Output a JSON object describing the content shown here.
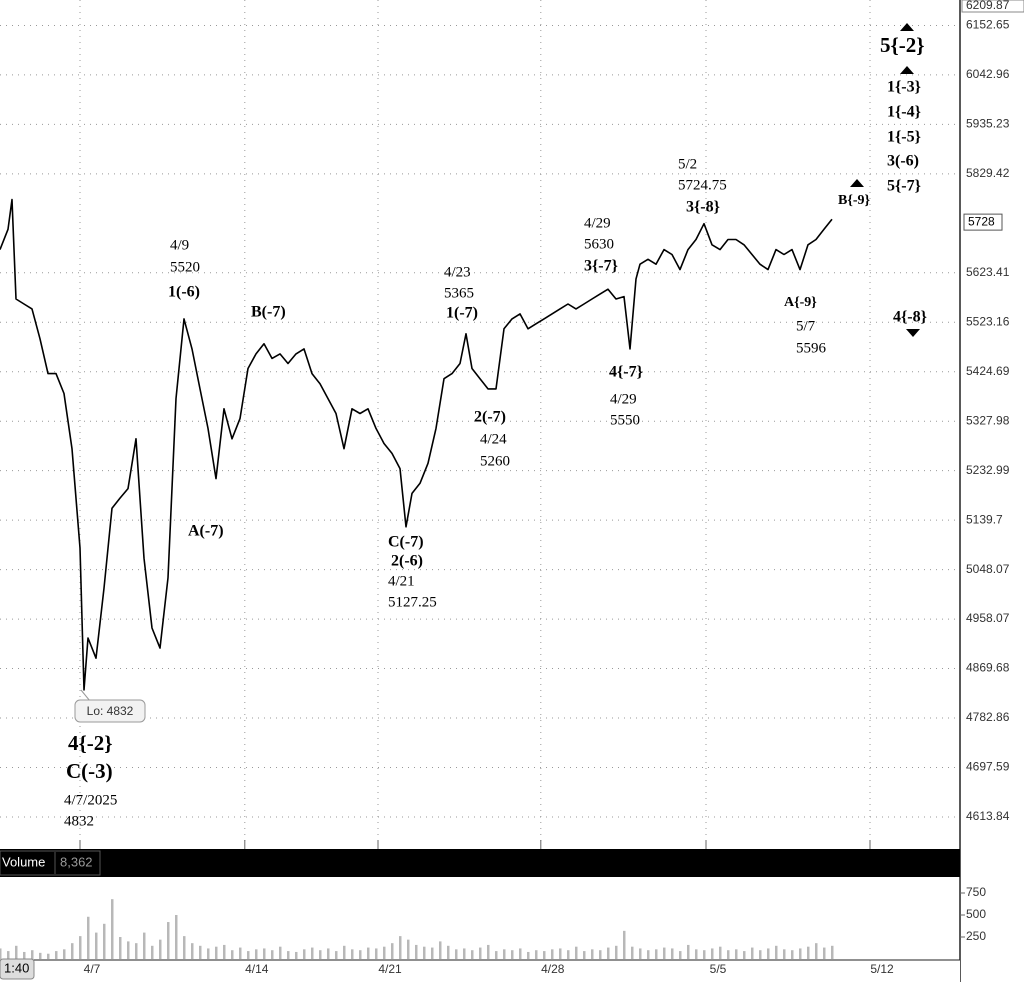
{
  "chart_data": [
    {
      "type": "line",
      "log_scale": true,
      "grid": true,
      "color": "#000000",
      "ylim": [
        4567,
        6209.87
      ],
      "yticks": [
        6152.65,
        6042.96,
        5935.23,
        5829.42,
        5623.41,
        5523.16,
        5424.69,
        5327.98,
        5232.99,
        5139.7,
        5048.07,
        4958.07,
        4869.68,
        4782.86,
        4697.59,
        4613.84
      ],
      "xlim": [
        0,
        120
      ],
      "x": [
        0,
        1,
        1.5,
        2,
        3,
        4,
        5,
        6,
        7,
        8,
        9,
        10,
        10.5,
        11,
        12,
        13,
        14,
        15,
        16,
        17,
        18,
        19,
        20,
        21,
        22,
        23,
        24,
        25,
        26,
        27,
        28,
        29,
        30,
        31,
        32,
        33,
        34,
        35,
        36,
        37,
        38,
        39,
        40,
        41,
        42,
        43,
        44,
        45,
        46,
        47,
        48,
        49,
        50,
        50.75,
        51.5,
        52.5,
        53.5,
        54.5,
        55.5,
        56.5,
        57.5,
        58.25,
        59,
        60,
        61,
        62,
        63,
        64,
        65,
        66,
        67,
        68,
        69,
        70,
        71,
        72,
        73,
        74,
        75,
        76,
        77,
        78,
        78.75,
        79.5,
        80,
        81,
        82,
        83,
        84,
        85,
        86,
        87,
        88,
        89,
        90,
        91,
        92,
        93,
        94,
        95,
        96,
        97,
        98,
        99,
        100,
        101,
        102,
        103,
        104
      ],
      "values": [
        5671,
        5713,
        5775,
        5570,
        5560,
        5550,
        5490,
        5421,
        5421,
        5382,
        5275,
        5088,
        4832,
        4924,
        4888,
        5014,
        5162,
        5181,
        5199,
        5294,
        5069,
        4942,
        4906,
        5033,
        5372,
        5530,
        5470,
        5391,
        5314,
        5218,
        5352,
        5294,
        5333,
        5431,
        5460,
        5480,
        5451,
        5460,
        5441,
        5460,
        5470,
        5421,
        5401,
        5372,
        5343,
        5275,
        5352,
        5343,
        5352,
        5314,
        5285,
        5266,
        5237,
        5127.25,
        5190,
        5209,
        5247,
        5314,
        5411,
        5421,
        5441,
        5500,
        5431,
        5411,
        5391,
        5391,
        5510,
        5530,
        5540,
        5510,
        5520,
        5530,
        5540,
        5550,
        5560,
        5550,
        5560,
        5570,
        5580,
        5590,
        5570,
        5575,
        5470,
        5611,
        5641,
        5651,
        5641,
        5671,
        5661,
        5630,
        5671,
        5692,
        5724.75,
        5681,
        5671,
        5692,
        5692,
        5681,
        5661,
        5641,
        5630,
        5671,
        5661,
        5671,
        5630,
        5681,
        5692,
        5713,
        5734
      ],
      "last_price": 5728,
      "low_label": "Lo: 4832",
      "annotations": [
        "4/9",
        "5520",
        "1(-6)",
        "B(-7)",
        "A(-7)",
        "4{-2}",
        "C(-3)",
        "4/7/2025",
        "4832",
        "C(-7)",
        "2(-6)",
        "4/21",
        "5127.25",
        "4/23",
        "5365",
        "1(-7)",
        "2(-7)",
        "4/24",
        "5260",
        "4/29",
        "5630",
        "3{-7}",
        "4{-7}",
        "4/29",
        "5550",
        "5/2",
        "5724.75",
        "3{-8}",
        "B{-9}",
        "A{-9}",
        "5/7",
        "5596",
        "5{-2}",
        "1{-3}",
        "1{-4}",
        "1{-5}",
        "3(-6)",
        "5{-7}",
        "4{-8}"
      ]
    },
    {
      "type": "bar",
      "title": "Volume",
      "color": "#b8b8b8",
      "last_value": {
        "value": 8362,
        "label": "8,362"
      },
      "time_label": "1:40",
      "ylim": [
        0,
        932
      ],
      "yticks": [
        250,
        500,
        750
      ],
      "xlim": [
        0,
        120
      ],
      "xticks": [
        {
          "value": 10,
          "label": "4/7"
        },
        {
          "value": 30.6,
          "label": "4/14"
        },
        {
          "value": 47.25,
          "label": "4/21"
        },
        {
          "value": 67.6,
          "label": "4/28"
        },
        {
          "value": 88.25,
          "label": "5/5"
        },
        {
          "value": 108.75,
          "label": "5/12"
        }
      ],
      "x": [
        0,
        1,
        2,
        3,
        4,
        5,
        6,
        7,
        8,
        9,
        10,
        11,
        12,
        13,
        14,
        15,
        16,
        17,
        18,
        19,
        20,
        21,
        22,
        23,
        24,
        25,
        26,
        27,
        28,
        29,
        30,
        31,
        32,
        33,
        34,
        35,
        36,
        37,
        38,
        39,
        40,
        41,
        42,
        43,
        44,
        45,
        46,
        47,
        48,
        49,
        50,
        51,
        52,
        53,
        54,
        55,
        56,
        57,
        58,
        59,
        60,
        61,
        62,
        63,
        64,
        65,
        66,
        67,
        68,
        69,
        70,
        71,
        72,
        73,
        74,
        75,
        76,
        77,
        78,
        79,
        80,
        81,
        82,
        83,
        84,
        85,
        86,
        87,
        88,
        89,
        90,
        91,
        92,
        93,
        94,
        95,
        96,
        97,
        98,
        99,
        100,
        101,
        102,
        103,
        104
      ],
      "values": [
        120,
        90,
        150,
        80,
        100,
        70,
        60,
        90,
        110,
        180,
        260,
        480,
        300,
        400,
        680,
        250,
        200,
        180,
        300,
        150,
        220,
        420,
        500,
        260,
        180,
        150,
        120,
        140,
        160,
        100,
        130,
        90,
        110,
        120,
        100,
        140,
        90,
        80,
        110,
        130,
        100,
        120,
        90,
        150,
        110,
        100,
        130,
        120,
        140,
        180,
        260,
        220,
        160,
        140,
        130,
        200,
        150,
        110,
        120,
        100,
        130,
        160,
        90,
        110,
        100,
        120,
        80,
        100,
        90,
        110,
        120,
        100,
        140,
        90,
        110,
        100,
        130,
        150,
        320,
        140,
        120,
        100,
        110,
        130,
        120,
        90,
        160,
        110,
        100,
        120,
        140,
        100,
        110,
        90,
        130,
        100,
        120,
        150,
        110,
        100,
        120,
        140,
        180,
        130,
        150
      ]
    }
  ]
}
